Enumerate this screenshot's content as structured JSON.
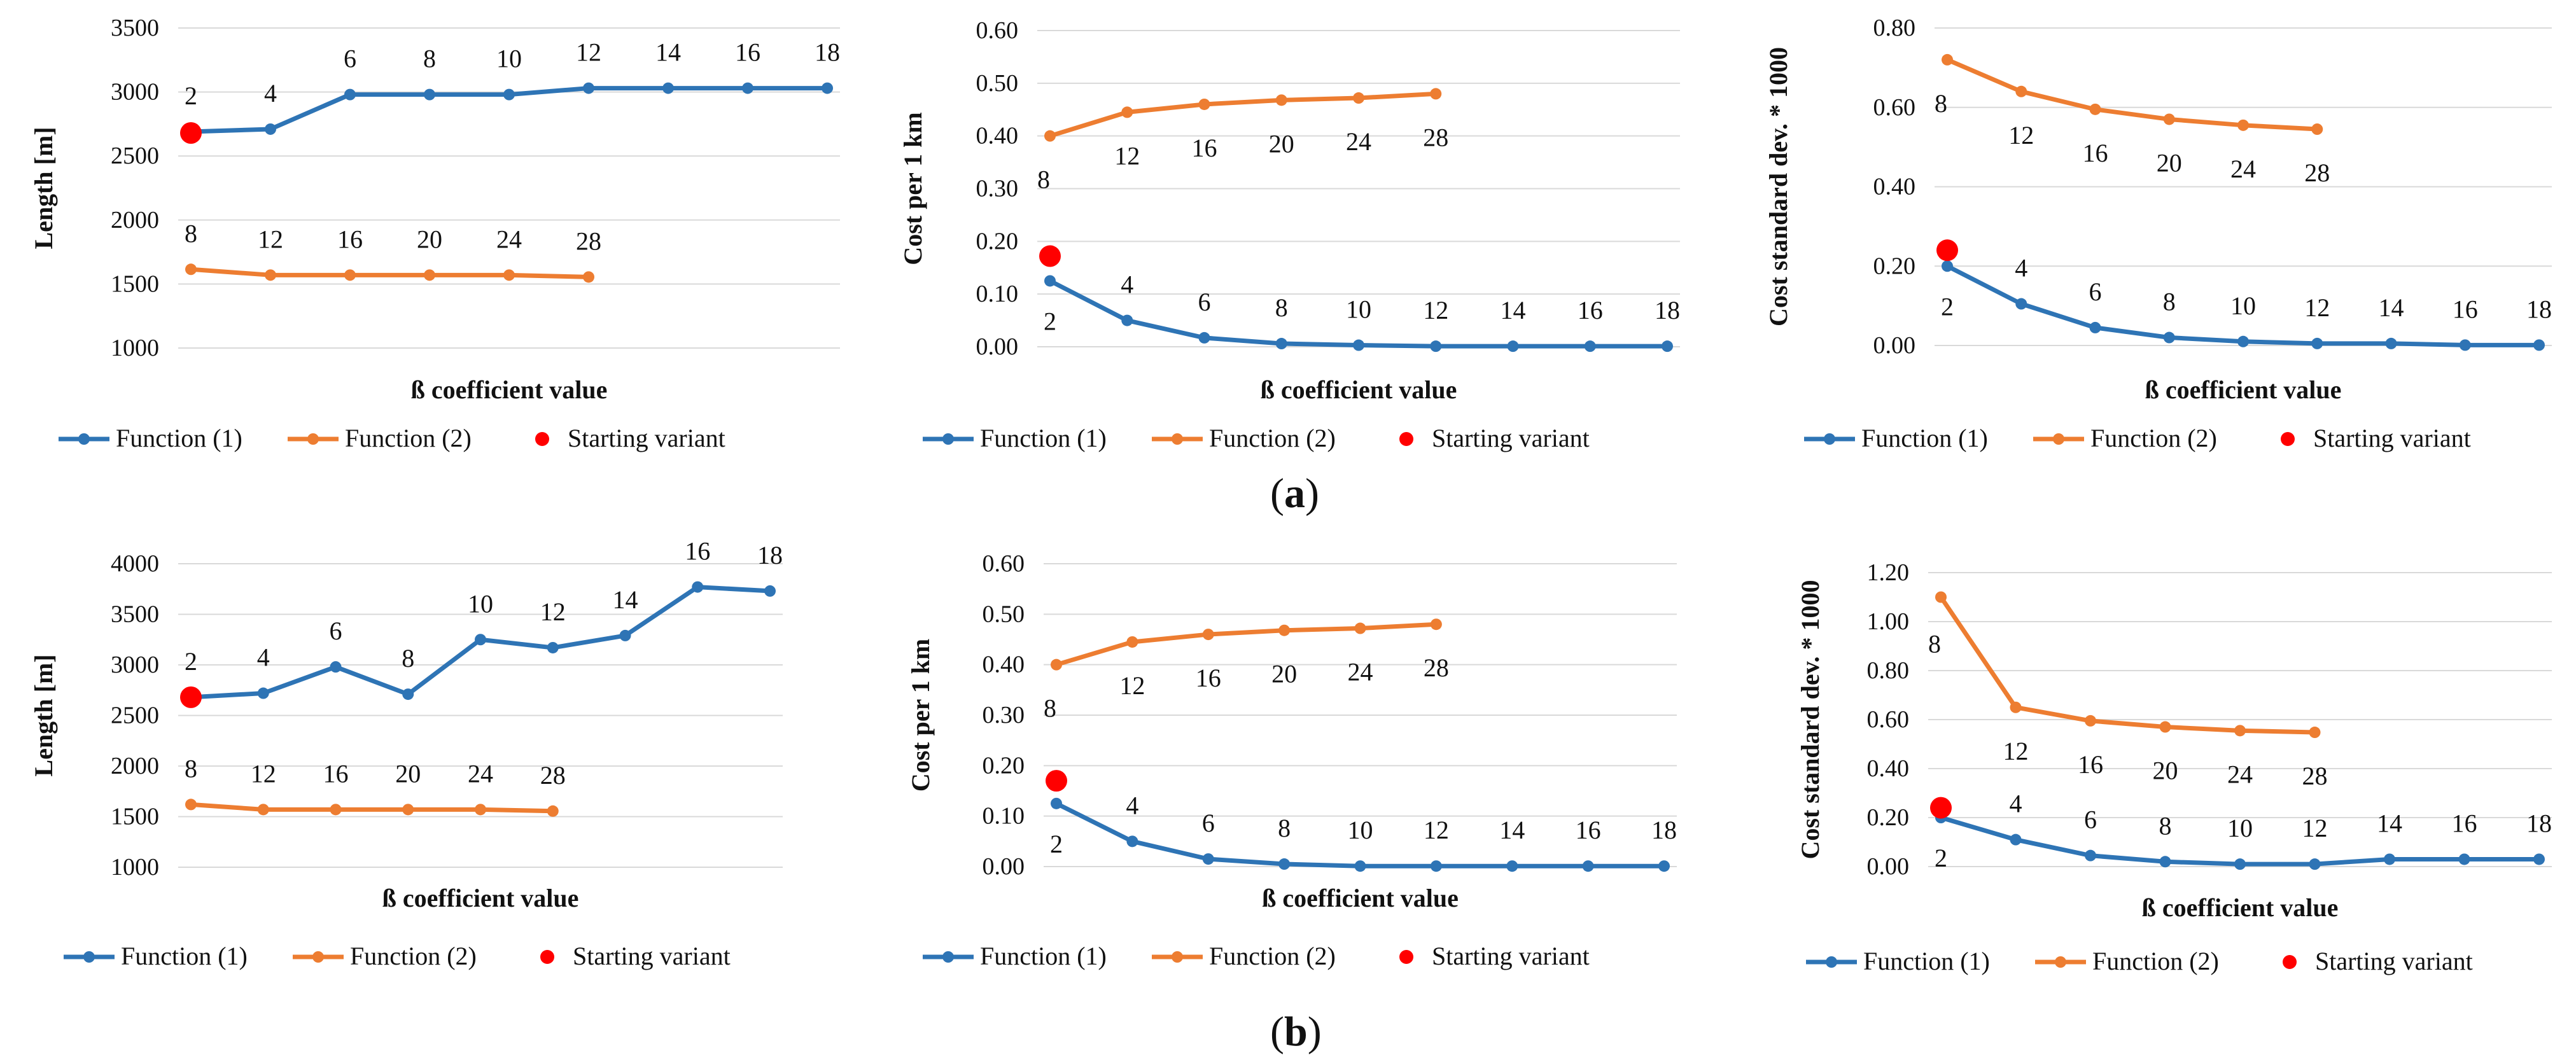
{
  "legend": {
    "function1": "Function (1)",
    "function2": "Function (2)",
    "starting": "Starting variant"
  },
  "colors": {
    "function1": "#2e74b5",
    "function2": "#ed7d31",
    "starting": "#ff0000",
    "grid": "#d9d9d9"
  },
  "panel_labels": [
    "a",
    "b"
  ],
  "chart_data": [
    {
      "type": "line",
      "panel": "a",
      "xlabel": "ß coefficient value",
      "ylabel": "Length [m]",
      "ylim": [
        1000,
        3500
      ],
      "yticks": [
        "1000",
        "1500",
        "2000",
        "2500",
        "3000",
        "3500"
      ],
      "grid": true,
      "legend_position": "bottom",
      "series": [
        {
          "name": "Function (1)",
          "x": [
            2,
            4,
            6,
            8,
            10,
            12,
            14,
            16,
            18
          ],
          "labels": [
            "2",
            "4",
            "6",
            "8",
            "10",
            "12",
            "14",
            "16",
            "18"
          ],
          "values": [
            2690,
            2710,
            2980,
            2980,
            2980,
            3030,
            3030,
            3030,
            3030
          ]
        },
        {
          "name": "Function (2)",
          "x": [
            8,
            12,
            16,
            20,
            24,
            28
          ],
          "labels": [
            "8",
            "12",
            "16",
            "20",
            "24",
            "28"
          ],
          "values": [
            1615,
            1570,
            1570,
            1570,
            1570,
            1555
          ]
        },
        {
          "name": "Starting variant",
          "x": [
            2
          ],
          "values": [
            2680
          ]
        }
      ]
    },
    {
      "type": "line",
      "panel": "a",
      "xlabel": "ß coefficient value",
      "ylabel": "Cost per 1 km",
      "ylim": [
        0,
        0.6
      ],
      "yticks": [
        "0.00",
        "0.10",
        "0.20",
        "0.30",
        "0.40",
        "0.50",
        "0.60"
      ],
      "grid": true,
      "legend_position": "bottom",
      "series": [
        {
          "name": "Function (1)",
          "x": [
            2,
            4,
            6,
            8,
            10,
            12,
            14,
            16,
            18
          ],
          "labels": [
            "2",
            "4",
            "6",
            "8",
            "10",
            "12",
            "14",
            "16",
            "18"
          ],
          "values": [
            0.125,
            0.05,
            0.017,
            0.006,
            0.003,
            0.001,
            0.001,
            0.001,
            0.001
          ]
        },
        {
          "name": "Function (2)",
          "x": [
            8,
            12,
            16,
            20,
            24,
            28
          ],
          "labels": [
            "8",
            "12",
            "16",
            "20",
            "24",
            "28"
          ],
          "values": [
            0.4,
            0.445,
            0.46,
            0.468,
            0.472,
            0.48
          ]
        },
        {
          "name": "Starting variant",
          "x": [
            2
          ],
          "values": [
            0.172
          ]
        }
      ]
    },
    {
      "type": "line",
      "panel": "a",
      "xlabel": "ß coefficient value",
      "ylabel": "Cost standard dev. * 1000",
      "ylim": [
        0,
        0.8
      ],
      "yticks": [
        "0.00",
        "0.20",
        "0.40",
        "0.60",
        "0.80"
      ],
      "grid": true,
      "legend_position": "bottom",
      "series": [
        {
          "name": "Function (1)",
          "x": [
            2,
            4,
            6,
            8,
            10,
            12,
            14,
            16,
            18
          ],
          "labels": [
            "2",
            "4",
            "6",
            "8",
            "10",
            "12",
            "14",
            "16",
            "18"
          ],
          "values": [
            0.2,
            0.105,
            0.045,
            0.02,
            0.01,
            0.005,
            0.005,
            0.001,
            0.001
          ]
        },
        {
          "name": "Function (2)",
          "x": [
            8,
            12,
            16,
            20,
            24,
            28
          ],
          "labels": [
            "8",
            "12",
            "16",
            "20",
            "24",
            "28"
          ],
          "values": [
            0.72,
            0.64,
            0.595,
            0.57,
            0.555,
            0.545
          ]
        },
        {
          "name": "Starting variant",
          "x": [
            2
          ],
          "values": [
            0.24
          ]
        }
      ]
    },
    {
      "type": "line",
      "panel": "b",
      "xlabel": "ß coefficient value",
      "ylabel": "Length [m]",
      "ylim": [
        1000,
        4000
      ],
      "yticks": [
        "1000",
        "1500",
        "2000",
        "2500",
        "3000",
        "3500",
        "4000"
      ],
      "grid": true,
      "legend_position": "bottom",
      "series": [
        {
          "name": "Function (1)",
          "x": [
            2,
            4,
            6,
            8,
            10,
            12,
            14,
            16,
            18
          ],
          "labels": [
            "2",
            "4",
            "6",
            "8",
            "10",
            "12",
            "14",
            "16",
            "18"
          ],
          "values": [
            2680,
            2720,
            2980,
            2710,
            3250,
            3170,
            3290,
            3770,
            3730
          ]
        },
        {
          "name": "Function (2)",
          "x": [
            8,
            12,
            16,
            20,
            24,
            28
          ],
          "labels": [
            "8",
            "12",
            "16",
            "20",
            "24",
            "28"
          ],
          "values": [
            1620,
            1570,
            1570,
            1570,
            1570,
            1555
          ]
        },
        {
          "name": "Starting variant",
          "x": [
            2
          ],
          "values": [
            2680
          ]
        }
      ]
    },
    {
      "type": "line",
      "panel": "b",
      "xlabel": "ß coefficient value",
      "ylabel": "Cost per 1 km",
      "ylim": [
        0,
        0.6
      ],
      "yticks": [
        "0.00",
        "0.10",
        "0.20",
        "0.30",
        "0.40",
        "0.50",
        "0.60"
      ],
      "grid": true,
      "legend_position": "bottom",
      "series": [
        {
          "name": "Function (1)",
          "x": [
            2,
            4,
            6,
            8,
            10,
            12,
            14,
            16,
            18
          ],
          "labels": [
            "2",
            "4",
            "6",
            "8",
            "10",
            "12",
            "14",
            "16",
            "18"
          ],
          "values": [
            0.125,
            0.05,
            0.015,
            0.005,
            0.001,
            0.001,
            0.001,
            0.001,
            0.001
          ]
        },
        {
          "name": "Function (2)",
          "x": [
            8,
            12,
            16,
            20,
            24,
            28
          ],
          "labels": [
            "8",
            "12",
            "16",
            "20",
            "24",
            "28"
          ],
          "values": [
            0.4,
            0.445,
            0.46,
            0.468,
            0.472,
            0.48
          ]
        },
        {
          "name": "Starting variant",
          "x": [
            2
          ],
          "values": [
            0.17
          ]
        }
      ]
    },
    {
      "type": "line",
      "panel": "b",
      "xlabel": "ß coefficient value",
      "ylabel": "Cost standard dev. * 1000",
      "ylim": [
        0,
        1.2
      ],
      "yticks": [
        "0.00",
        "0.20",
        "0.40",
        "0.60",
        "0.80",
        "1.00",
        "1.20"
      ],
      "grid": true,
      "legend_position": "bottom",
      "series": [
        {
          "name": "Function (1)",
          "x": [
            2,
            4,
            6,
            8,
            10,
            12,
            14,
            16,
            18
          ],
          "labels": [
            "2",
            "4",
            "6",
            "8",
            "10",
            "12",
            "14",
            "16",
            "18"
          ],
          "values": [
            0.2,
            0.11,
            0.045,
            0.02,
            0.01,
            0.01,
            0.03,
            0.03,
            0.03
          ]
        },
        {
          "name": "Function (2)",
          "x": [
            8,
            12,
            16,
            20,
            24,
            28
          ],
          "labels": [
            "8",
            "12",
            "16",
            "20",
            "24",
            "28"
          ],
          "values": [
            1.1,
            0.65,
            0.595,
            0.57,
            0.555,
            0.548
          ]
        },
        {
          "name": "Starting variant",
          "x": [
            2
          ],
          "values": [
            0.24
          ]
        }
      ]
    }
  ]
}
